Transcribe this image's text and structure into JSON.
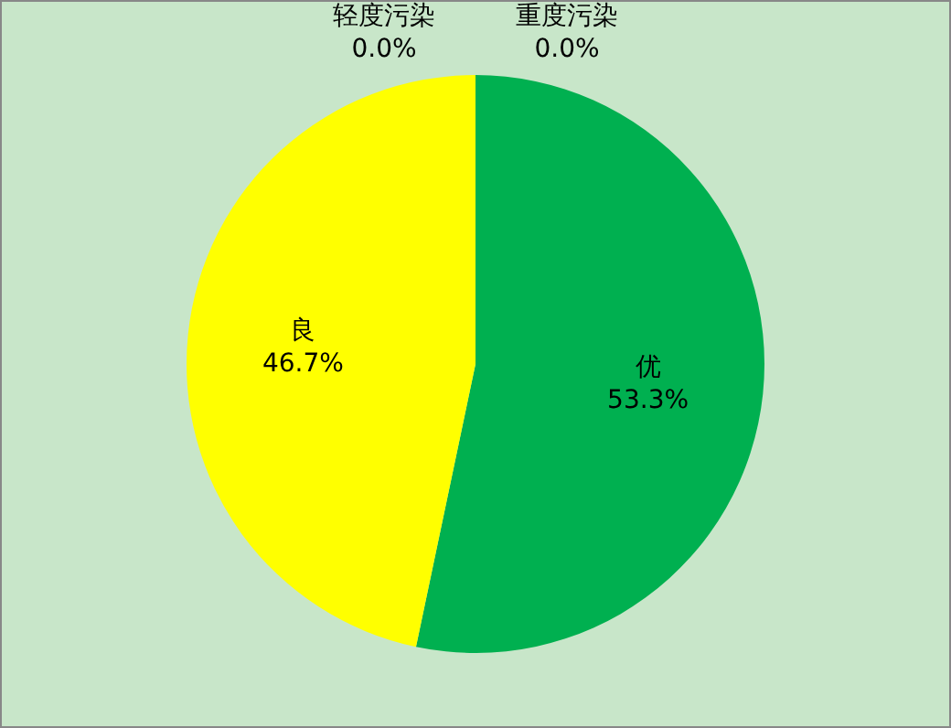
{
  "chart_data": {
    "type": "pie",
    "categories": [
      "优",
      "良",
      "轻度污染",
      "重度污染"
    ],
    "values": [
      53.3,
      46.7,
      0.0,
      0.0
    ],
    "colors": [
      "#00b050",
      "#ffff00",
      "#ff9900",
      "#ff0000"
    ],
    "value_labels": [
      "53.3%",
      "46.7%",
      "0.0%",
      "0.0%"
    ],
    "legend": false
  }
}
